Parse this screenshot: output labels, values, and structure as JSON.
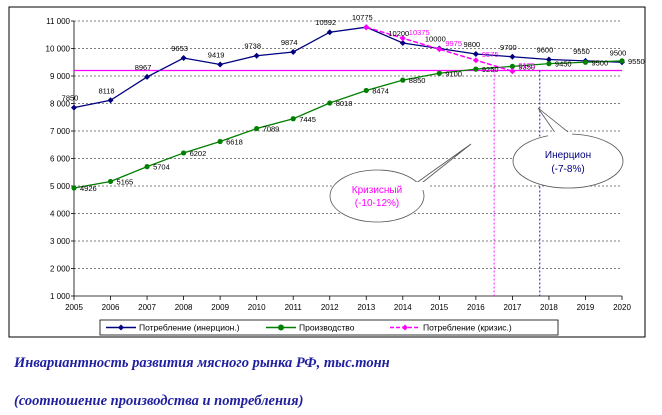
{
  "chart_data": {
    "type": "line",
    "x": [
      2005,
      2006,
      2007,
      2008,
      2009,
      2010,
      2011,
      2012,
      2013,
      2014,
      2015,
      2016,
      2017,
      2018,
      2019,
      2020
    ],
    "xlim": [
      2005,
      2020
    ],
    "ylim": [
      1000,
      11000
    ],
    "yticks": [
      1000,
      2000,
      3000,
      4000,
      5000,
      6000,
      7000,
      8000,
      9000,
      10000,
      11000
    ],
    "ytick_labels": [
      "1 000",
      "2 000",
      "3 000",
      "4 000",
      "5 000",
      "6 000",
      "7 000",
      "8 000",
      "9 000",
      "10 000",
      "11 000"
    ],
    "grid": "horizontal-dashed",
    "legend_position": "bottom",
    "reference_line": {
      "y": 9200,
      "color": "#ff00ff"
    },
    "vertical_markers": [
      {
        "x": 2016.5,
        "color": "#ff00ff"
      },
      {
        "x": 2017.75,
        "color": "#0000ff"
      }
    ],
    "series": [
      {
        "name": "Потребление (инерцион.)",
        "color": "#00007f",
        "marker": "diamond",
        "x": [
          2005,
          2006,
          2007,
          2008,
          2009,
          2010,
          2011,
          2012,
          2013,
          2014,
          2015,
          2016,
          2017,
          2018,
          2019,
          2020
        ],
        "values": [
          7850,
          8118,
          8967,
          9653,
          9419,
          9738,
          9874,
          10592,
          10775,
          10200,
          10000,
          9800,
          9700,
          9600,
          9550,
          9500
        ],
        "labels": [
          "7850",
          "8118",
          "8967",
          "9653",
          "9419",
          "9738",
          "9874",
          "10592",
          "10775",
          "10200",
          "10000",
          "9800",
          "9700",
          "9600",
          "9550",
          "9500"
        ]
      },
      {
        "name": "Производство",
        "color": "#007f00",
        "marker": "circle",
        "x": [
          2005,
          2006,
          2007,
          2008,
          2009,
          2010,
          2011,
          2012,
          2013,
          2014,
          2015,
          2016,
          2017,
          2018,
          2019,
          2020
        ],
        "values": [
          4926,
          5165,
          5704,
          6202,
          6618,
          7089,
          7445,
          8018,
          8474,
          8850,
          9100,
          9250,
          9350,
          9450,
          9500,
          9550
        ],
        "labels": [
          "4926",
          "5165",
          "5704",
          "6202",
          "6618",
          "7089",
          "7445",
          "8018",
          "8474",
          "8850",
          "9100",
          "9250",
          "9350",
          "9450",
          "9500",
          "9550"
        ]
      },
      {
        "name": "Потребление (кризис.)",
        "color": "#ff00ff",
        "marker": "diamond",
        "x": [
          2013,
          2014,
          2015,
          2016,
          2017
        ],
        "values": [
          10775,
          10375,
          9975,
          9575,
          9175
        ],
        "labels": [
          "",
          "10375",
          "9975",
          "9575",
          "9175"
        ]
      }
    ],
    "annotations": [
      {
        "text": "Кризисный (-10-12%)",
        "lines": [
          "Кризисный",
          "(-10-12%)"
        ],
        "color": "#ff00ff"
      },
      {
        "text": "Инерцион (-7-8%)",
        "lines": [
          "Инерцион",
          "(-7-8%)"
        ],
        "color": "#000080"
      }
    ]
  },
  "caption": {
    "line1": "Инвариантность развития мясного рынка РФ, тыс.тонн",
    "line2": "(соотношение производства и потребления)"
  }
}
